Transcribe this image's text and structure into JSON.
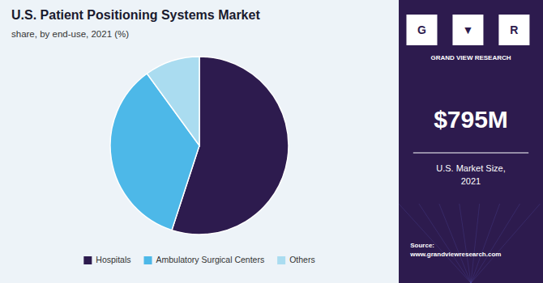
{
  "chart_data": {
    "type": "pie",
    "title": "U.S. Patient Positioning Systems Market",
    "subtitle": "share, by end-use, 2021 (%)",
    "categories": [
      "Hospitals",
      "Ambulatory Surgical Centers",
      "Others"
    ],
    "values": [
      55.0,
      35.0,
      10.0
    ],
    "colors": [
      "#2d1b4e",
      "#4db8e8",
      "#aadcf0"
    ],
    "legend": "bottom",
    "annotations": [
      "G",
      "▼",
      "R",
      "GRAND VIEW RESEARCH",
      "$795M",
      "U.S. Market Size,\n2021",
      "Source:\nwww.grandviewresearch.com"
    ]
  }
}
